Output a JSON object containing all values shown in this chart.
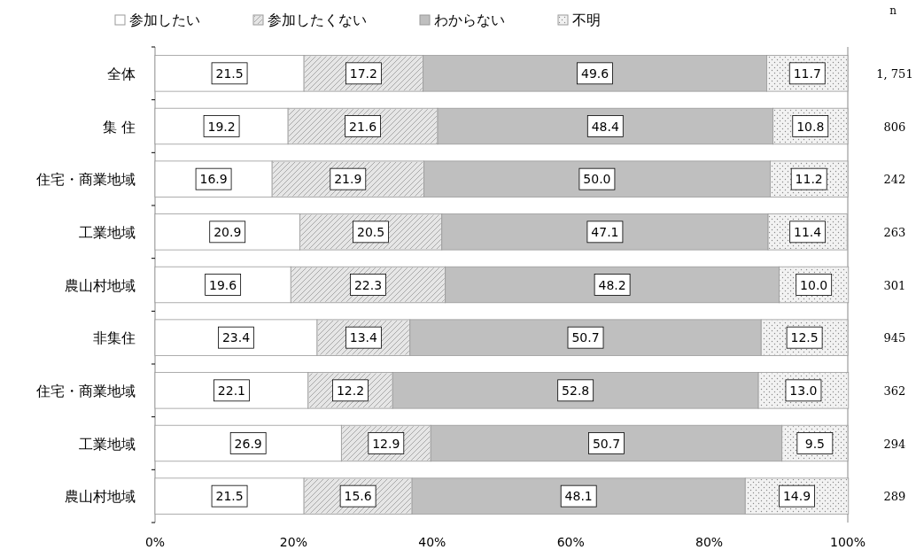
{
  "chart_data": {
    "type": "bar",
    "orientation": "horizontal",
    "stacked": true,
    "legend": "top",
    "grid": false,
    "categories": [
      "全体",
      "集 住",
      "住宅・商業地域",
      "工業地域",
      "農山村地域",
      "非集住",
      "住宅・商業地域",
      "工業地域",
      "農山村地域"
    ],
    "series": [
      {
        "name": "参加したい",
        "color": "#ffffff",
        "values": [
          21.5,
          19.2,
          16.9,
          20.9,
          19.6,
          23.4,
          22.1,
          26.9,
          21.5
        ],
        "value_labels": [
          "21.5",
          "19.2",
          "16.9",
          "20.9",
          "19.6",
          "23.4",
          "22.1",
          "26.9",
          "21.5"
        ]
      },
      {
        "name": "参加したくない",
        "color": "#e6e6e6",
        "values": [
          17.2,
          21.6,
          21.9,
          20.5,
          22.3,
          13.4,
          12.2,
          12.9,
          15.6
        ],
        "value_labels": [
          "17.2",
          "21.6",
          "21.9",
          "20.5",
          "22.3",
          "13.4",
          "12.2",
          "12.9",
          "15.6"
        ]
      },
      {
        "name": "わからない",
        "color": "#bfbfbf",
        "values": [
          49.6,
          48.4,
          50.0,
          47.1,
          48.2,
          50.7,
          52.8,
          50.7,
          48.1
        ],
        "value_labels": [
          "49.6",
          "48.4",
          "50.0",
          "47.1",
          "48.2",
          "50.7",
          "52.8",
          "50.7",
          "48.1"
        ]
      },
      {
        "name": "不明",
        "color": "#f2f2f2",
        "values": [
          11.7,
          10.8,
          11.2,
          11.4,
          10.0,
          12.5,
          13.0,
          9.5,
          14.9
        ],
        "value_labels": [
          "11.7",
          "10.8",
          "11.2",
          "11.4",
          "10.0",
          "12.5",
          "13.0",
          "9.5",
          "14.9"
        ]
      }
    ],
    "xlim": [
      0,
      100
    ],
    "xticks": [
      {
        "value": 0,
        "label": "0%"
      },
      {
        "value": 20,
        "label": "20%"
      },
      {
        "value": 40,
        "label": "40%"
      },
      {
        "value": 60,
        "label": "60%"
      },
      {
        "value": 80,
        "label": "80%"
      },
      {
        "value": 100,
        "label": "100%"
      }
    ],
    "annotations": [
      "n",
      "1, 751",
      "806",
      "242",
      "263",
      "301",
      "945",
      "362",
      "294",
      "289"
    ]
  }
}
